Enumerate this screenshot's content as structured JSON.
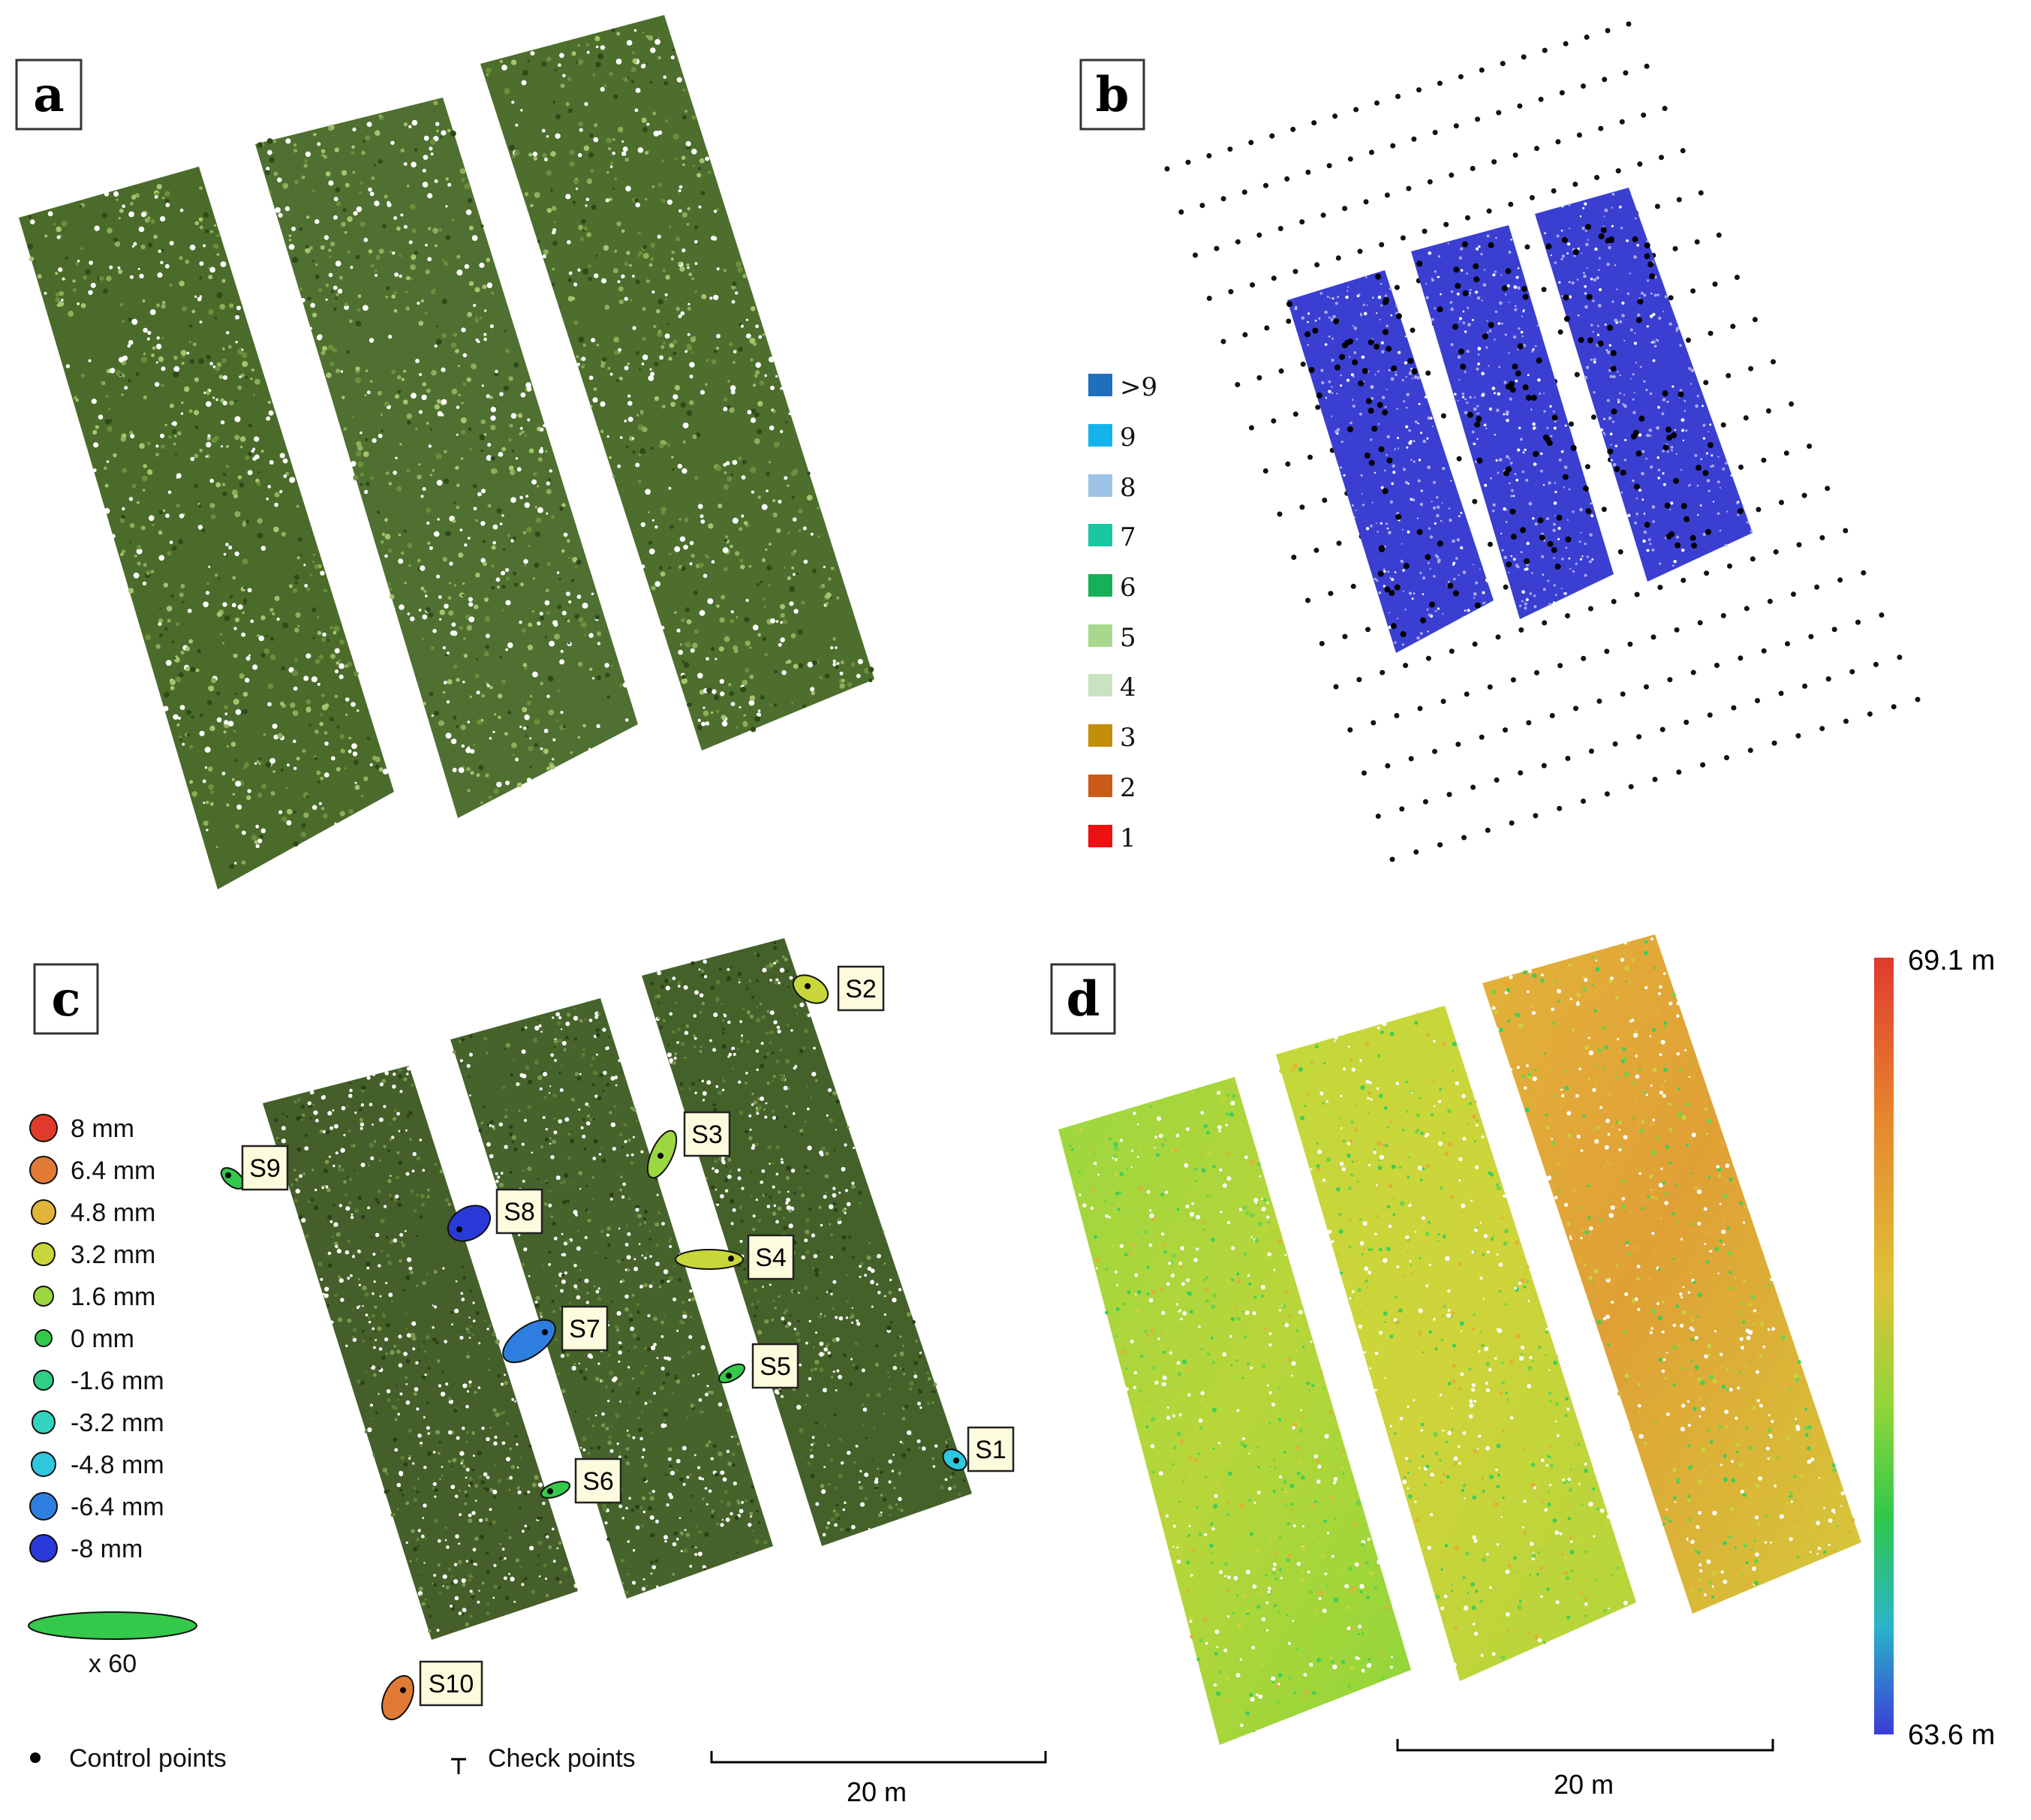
{
  "panels": {
    "a": {
      "label": "a"
    },
    "b": {
      "label": "b",
      "legend": [
        {
          "label": ">9",
          "color": "#1f6fbf"
        },
        {
          "label": "9",
          "color": "#14b4ea"
        },
        {
          "label": "8",
          "color": "#9fc3e6"
        },
        {
          "label": "7",
          "color": "#19c7a0"
        },
        {
          "label": "6",
          "color": "#14b158"
        },
        {
          "label": "5",
          "color": "#a8d88d"
        },
        {
          "label": "4",
          "color": "#c8e3c0"
        },
        {
          "label": "3",
          "color": "#c28f0a"
        },
        {
          "label": "2",
          "color": "#c95b16"
        },
        {
          "label": "1",
          "color": "#ee1111"
        }
      ]
    },
    "c": {
      "label": "c",
      "legend": [
        {
          "label": "8 mm",
          "color": "#e23b2e"
        },
        {
          "label": "6.4 mm",
          "color": "#e07a35"
        },
        {
          "label": "4.8 mm",
          "color": "#e1b43a"
        },
        {
          "label": "3.2 mm",
          "color": "#c9d63a"
        },
        {
          "label": "1.6 mm",
          "color": "#9bd73e"
        },
        {
          "label": "0 mm",
          "color": "#34c94a"
        },
        {
          "label": "-1.6 mm",
          "color": "#2fcf86"
        },
        {
          "label": "-3.2 mm",
          "color": "#33d4bf"
        },
        {
          "label": "-4.8 mm",
          "color": "#2fc6de"
        },
        {
          "label": "-6.4 mm",
          "color": "#2e7ee0"
        },
        {
          "label": "-8 mm",
          "color": "#2a3ad8"
        }
      ],
      "ellipse_scale_label": "x 60",
      "control_points_label": "Control points",
      "check_points_label": "Check points",
      "scale_bar_label": "20 m",
      "sites": [
        {
          "label": "S1",
          "color": "#2fc6de"
        },
        {
          "label": "S2",
          "color": "#c9d63a"
        },
        {
          "label": "S3",
          "color": "#9bd73e"
        },
        {
          "label": "S4",
          "color": "#c9d63a"
        },
        {
          "label": "S5",
          "color": "#34c94a"
        },
        {
          "label": "S6",
          "color": "#34c94a"
        },
        {
          "label": "S7",
          "color": "#2e7ee0"
        },
        {
          "label": "S8",
          "color": "#2a3ad8"
        },
        {
          "label": "S9",
          "color": "#34c94a"
        },
        {
          "label": "S10",
          "color": "#e07a35"
        }
      ]
    },
    "d": {
      "label": "d",
      "colorbar_max": "69.1 m",
      "colorbar_min": "63.6 m",
      "colorbar_colors": [
        "#e03a2f",
        "#e6842e",
        "#dfc237",
        "#8fd63a",
        "#31c84a",
        "#2ab5c9",
        "#3b3dd6"
      ],
      "scale_bar_label": "20 m"
    }
  }
}
